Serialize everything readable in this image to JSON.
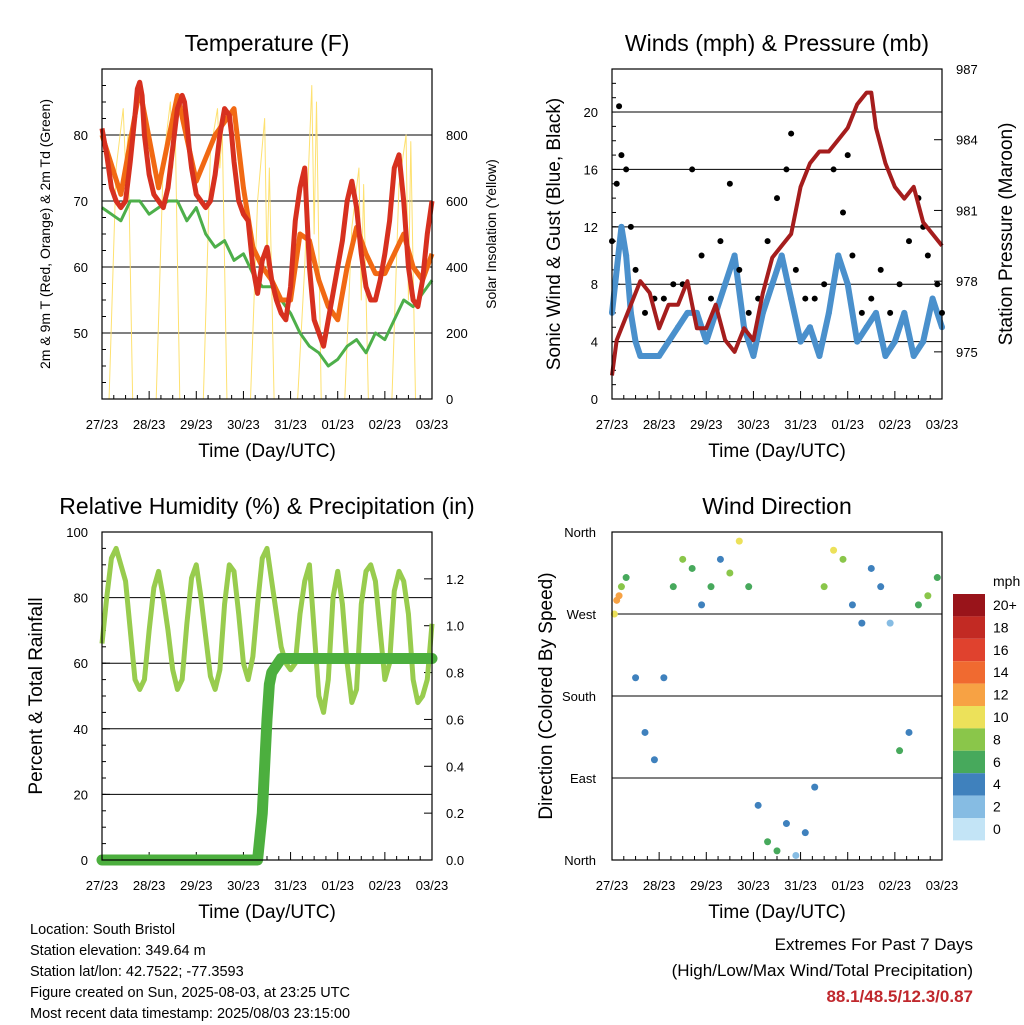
{
  "x_ticks": [
    "27/23",
    "28/23",
    "29/23",
    "30/23",
    "31/23",
    "01/23",
    "02/23",
    "03/23"
  ],
  "xlabel": "Time (Day/UTC)",
  "chart_data": [
    {
      "type": "line",
      "title": "Temperature (F)",
      "ylabel": "2m & 9m T (Red, Orange) & 2m Td (Green)",
      "y2label": "Solar Insolation (Yellow)",
      "ylim": [
        40,
        90
      ],
      "y_ticks": [
        50,
        60,
        70,
        80
      ],
      "y2lim": [
        0,
        1000
      ],
      "y2_ticks": [
        0,
        200,
        400,
        600,
        800
      ],
      "x_range_days": [
        0,
        7
      ],
      "series": [
        {
          "name": "2m T",
          "color": "#d7301f",
          "width": 5,
          "x": [
            0,
            0.1,
            0.2,
            0.3,
            0.4,
            0.5,
            0.6,
            0.7,
            0.75,
            0.8,
            0.85,
            0.9,
            1.0,
            1.1,
            1.2,
            1.3,
            1.4,
            1.5,
            1.6,
            1.7,
            1.75,
            1.8,
            1.85,
            1.9,
            2.0,
            2.1,
            2.2,
            2.3,
            2.4,
            2.5,
            2.6,
            2.7,
            2.75,
            2.8,
            2.85,
            2.9,
            3.0,
            3.1,
            3.2,
            3.3,
            3.4,
            3.5,
            3.6,
            3.7,
            3.8,
            3.9,
            4.0,
            4.1,
            4.2,
            4.3,
            4.4,
            4.5,
            4.6,
            4.7,
            4.8,
            4.9,
            5.0,
            5.1,
            5.2,
            5.3,
            5.4,
            5.5,
            5.6,
            5.7,
            5.8,
            5.9,
            6.0,
            6.1,
            6.2,
            6.3,
            6.4,
            6.5,
            6.6,
            6.7,
            6.8,
            6.9,
            7.0
          ],
          "y": [
            81,
            77,
            72,
            70,
            69,
            70,
            76,
            83,
            87,
            88,
            86,
            80,
            74,
            71,
            70,
            69,
            72,
            78,
            84,
            86,
            85,
            82,
            78,
            75,
            71,
            70,
            69,
            70,
            74,
            80,
            84,
            83,
            80,
            76,
            73,
            70,
            68,
            67,
            60,
            56,
            61,
            63,
            58,
            55,
            53,
            52,
            57,
            67,
            72,
            75,
            60,
            52,
            50,
            48,
            52,
            56,
            60,
            64,
            70,
            73,
            69,
            62,
            57,
            55,
            55,
            58,
            62,
            67,
            75,
            77,
            70,
            60,
            55,
            54,
            58,
            65,
            70
          ]
        },
        {
          "name": "9m T",
          "color": "#f16913",
          "width": 5,
          "x": [
            0,
            0.4,
            0.8,
            1.2,
            1.6,
            2.0,
            2.4,
            2.8,
            3.0,
            3.2,
            3.4,
            3.6,
            3.8,
            4.0,
            4.2,
            4.4,
            4.6,
            4.8,
            5.0,
            5.2,
            5.4,
            5.6,
            5.8,
            6.0,
            6.2,
            6.4,
            6.6,
            6.8,
            7.0
          ],
          "y": [
            80,
            71,
            87,
            72,
            86,
            73,
            80,
            84,
            72,
            63,
            60,
            58,
            55,
            55,
            65,
            64,
            58,
            54,
            52,
            60,
            66,
            62,
            59,
            59,
            62,
            65,
            60,
            58,
            62
          ]
        },
        {
          "name": "2m Td",
          "color": "#4daf4a",
          "width": 3,
          "x": [
            0,
            0.2,
            0.4,
            0.6,
            0.8,
            1.0,
            1.2,
            1.4,
            1.6,
            1.8,
            2.0,
            2.2,
            2.4,
            2.6,
            2.8,
            3.0,
            3.2,
            3.4,
            3.6,
            3.8,
            4.0,
            4.2,
            4.4,
            4.6,
            4.8,
            5.0,
            5.2,
            5.4,
            5.6,
            5.8,
            6.0,
            6.2,
            6.4,
            6.6,
            6.8,
            7.0
          ],
          "y": [
            69,
            68,
            67,
            70,
            70,
            68,
            69,
            70,
            70,
            67,
            69,
            65,
            63,
            64,
            61,
            62,
            59,
            57,
            57,
            55,
            53,
            50,
            48,
            47,
            45,
            46,
            48,
            49,
            47,
            50,
            49,
            52,
            55,
            54,
            56,
            58
          ]
        },
        {
          "name": "Solar",
          "color": "#fee170",
          "width": 1,
          "axis": "y2",
          "x": [
            0,
            0.15,
            0.3,
            0.45,
            0.5,
            0.55,
            0.65,
            0.85,
            1.15,
            1.3,
            1.45,
            1.5,
            1.55,
            1.65,
            1.85,
            2.15,
            2.3,
            2.45,
            2.5,
            2.55,
            2.65,
            2.85,
            3.15,
            3.3,
            3.45,
            3.5,
            3.55,
            3.65,
            3.85,
            4.15,
            4.3,
            4.45,
            4.5,
            4.55,
            4.65,
            4.85,
            5.15,
            5.3,
            5.45,
            5.5,
            5.55,
            5.65,
            5.85,
            6.15,
            6.3,
            6.45,
            6.5,
            6.55,
            6.65,
            6.85,
            7.0
          ],
          "y": [
            0,
            0,
            700,
            880,
            700,
            800,
            0,
            0,
            0,
            720,
            900,
            700,
            850,
            0,
            0,
            0,
            750,
            880,
            700,
            820,
            0,
            0,
            0,
            600,
            850,
            400,
            700,
            0,
            0,
            0,
            400,
            950,
            500,
            900,
            0,
            0,
            0,
            520,
            700,
            300,
            650,
            0,
            0,
            0,
            650,
            800,
            300,
            780,
            0,
            0,
            0
          ]
        }
      ]
    },
    {
      "type": "scatter",
      "title": "Winds (mph) & Pressure (mb)",
      "ylabel": "Sonic Wind & Gust (Blue, Black)",
      "y2label": "Station Pressure (Maroon)",
      "ylim": [
        0,
        23
      ],
      "y_ticks": [
        0,
        4,
        8,
        12,
        16,
        20
      ],
      "y2lim": [
        973,
        987
      ],
      "y2_ticks": [
        975,
        978,
        981,
        984,
        987
      ],
      "x_range_days": [
        0,
        7
      ],
      "series": [
        {
          "name": "Wind",
          "color": "#4a90cc",
          "x": [
            0,
            0.1,
            0.2,
            0.3,
            0.4,
            0.5,
            0.6,
            0.8,
            1.0,
            1.2,
            1.4,
            1.6,
            1.8,
            2.0,
            2.2,
            2.4,
            2.6,
            2.8,
            3.0,
            3.2,
            3.4,
            3.6,
            3.8,
            4.0,
            4.2,
            4.4,
            4.6,
            4.8,
            5.0,
            5.2,
            5.4,
            5.6,
            5.8,
            6.0,
            6.2,
            6.4,
            6.6,
            6.8,
            7.0
          ],
          "y": [
            6,
            9,
            12,
            10,
            6,
            4,
            3,
            3,
            3,
            4,
            5,
            6,
            6,
            4,
            6,
            8,
            10,
            5,
            3,
            6,
            8,
            10,
            7,
            4,
            5,
            3,
            6,
            10,
            8,
            4,
            5,
            6,
            3,
            4,
            6,
            3,
            4,
            7,
            5
          ]
        },
        {
          "name": "Gust",
          "color": "#000000",
          "x": [
            0,
            0.1,
            0.15,
            0.2,
            0.3,
            0.4,
            0.5,
            0.7,
            0.9,
            1.1,
            1.3,
            1.5,
            1.7,
            1.9,
            2.1,
            2.3,
            2.5,
            2.7,
            2.9,
            3.1,
            3.3,
            3.5,
            3.7,
            3.8,
            3.9,
            4.1,
            4.3,
            4.5,
            4.7,
            4.9,
            5.0,
            5.1,
            5.3,
            5.5,
            5.7,
            5.9,
            6.1,
            6.3,
            6.5,
            6.6,
            6.7,
            6.9,
            7.0
          ],
          "y": [
            11,
            15,
            20.4,
            17,
            16,
            12,
            9,
            6,
            7,
            7,
            8,
            8,
            16,
            10,
            7,
            11,
            15,
            9,
            6,
            7,
            11,
            14,
            16,
            18.5,
            9,
            7,
            7,
            8,
            16,
            13,
            17,
            10,
            6,
            7,
            9,
            6,
            8,
            11,
            14,
            12,
            10,
            8,
            6
          ]
        },
        {
          "name": "Pressure",
          "color": "#a51d1d",
          "axis": "y2",
          "x": [
            0,
            0.1,
            0.2,
            0.4,
            0.6,
            0.8,
            1.0,
            1.2,
            1.4,
            1.6,
            1.8,
            2.0,
            2.2,
            2.4,
            2.6,
            2.8,
            3.0,
            3.2,
            3.4,
            3.6,
            3.8,
            4.0,
            4.2,
            4.4,
            4.6,
            4.8,
            5.0,
            5.2,
            5.4,
            5.5,
            5.6,
            5.8,
            6.0,
            6.2,
            6.4,
            6.6,
            6.8,
            7.0
          ],
          "y": [
            974,
            975.5,
            976,
            977,
            978,
            977.5,
            976,
            977,
            977,
            978,
            976,
            976,
            977,
            975.5,
            975,
            976,
            975.5,
            977.5,
            979,
            979.5,
            980,
            982,
            983,
            983.5,
            983.5,
            984,
            984.5,
            985.5,
            986,
            986,
            984.5,
            983,
            982,
            981.5,
            982,
            980.5,
            980,
            979.5
          ]
        }
      ]
    },
    {
      "type": "line",
      "title": "Relative Humidity (%) & Precipitation (in)",
      "ylabel": "Percent & Total Rainfall",
      "ylim": [
        0,
        100
      ],
      "y_ticks": [
        0,
        20,
        40,
        60,
        80,
        100
      ],
      "y2lim": [
        0,
        1.4
      ],
      "y2_ticks": [
        0.0,
        0.2,
        0.4,
        0.6,
        0.8,
        1.0,
        1.2
      ],
      "x_range_days": [
        0,
        7
      ],
      "series": [
        {
          "name": "RH",
          "color": "#98cc4e",
          "width": 5,
          "x": [
            0,
            0.1,
            0.2,
            0.3,
            0.4,
            0.5,
            0.6,
            0.7,
            0.8,
            0.9,
            1.0,
            1.1,
            1.2,
            1.3,
            1.4,
            1.5,
            1.6,
            1.7,
            1.8,
            1.9,
            2.0,
            2.1,
            2.2,
            2.3,
            2.4,
            2.5,
            2.6,
            2.7,
            2.8,
            2.9,
            3.0,
            3.1,
            3.2,
            3.3,
            3.4,
            3.5,
            3.6,
            3.7,
            3.8,
            3.9,
            4.0,
            4.1,
            4.2,
            4.3,
            4.4,
            4.5,
            4.6,
            4.7,
            4.8,
            4.9,
            5.0,
            5.1,
            5.2,
            5.3,
            5.4,
            5.5,
            5.6,
            5.7,
            5.8,
            5.9,
            6.0,
            6.1,
            6.2,
            6.3,
            6.4,
            6.5,
            6.6,
            6.7,
            6.8,
            6.9,
            7.0
          ],
          "y": [
            66,
            80,
            92,
            95,
            90,
            85,
            70,
            55,
            52,
            55,
            70,
            83,
            88,
            80,
            70,
            58,
            52,
            55,
            72,
            86,
            90,
            80,
            68,
            56,
            52,
            58,
            78,
            90,
            88,
            75,
            60,
            55,
            62,
            78,
            92,
            95,
            85,
            75,
            65,
            60,
            58,
            60,
            75,
            85,
            90,
            70,
            50,
            45,
            55,
            80,
            88,
            78,
            60,
            48,
            52,
            78,
            88,
            90,
            85,
            70,
            55,
            60,
            82,
            88,
            85,
            75,
            55,
            48,
            50,
            55,
            72
          ]
        },
        {
          "name": "Precip",
          "color": "#4caf3e",
          "width": 11,
          "axis": "y2",
          "x": [
            0,
            1.0,
            2.0,
            3.0,
            3.3,
            3.4,
            3.45,
            3.5,
            3.55,
            3.6,
            3.7,
            3.8,
            4.0,
            5.0,
            6.0,
            7.0
          ],
          "y": [
            0,
            0,
            0,
            0,
            0,
            0.2,
            0.4,
            0.6,
            0.75,
            0.8,
            0.83,
            0.86,
            0.86,
            0.86,
            0.86,
            0.86
          ]
        }
      ]
    },
    {
      "type": "scatter",
      "title": "Wind Direction",
      "ylabel": "Direction (Colored By Speed)",
      "y_ticks": [
        "North",
        "West",
        "South",
        "East",
        "North"
      ],
      "ylim": [
        0,
        360
      ],
      "x_range_days": [
        0,
        7
      ],
      "legend_title": "mph",
      "legend_labels": [
        "20+",
        "18",
        "16",
        "14",
        "12",
        "10",
        "8",
        "6",
        "4",
        "2",
        "0"
      ],
      "legend_colors": [
        "#99141a",
        "#c22a23",
        "#e0422e",
        "#f06a30",
        "#f7a244",
        "#ece15a",
        "#8ac64a",
        "#47a95c",
        "#3f81bd",
        "#86bce3",
        "#c3e4f6"
      ],
      "series": [
        {
          "name": "dir",
          "x": [
            0.05,
            0.1,
            0.15,
            0.2,
            0.3,
            0.5,
            0.7,
            0.9,
            1.1,
            1.3,
            1.5,
            1.7,
            1.9,
            2.1,
            2.3,
            2.5,
            2.7,
            2.9,
            3.1,
            3.3,
            3.5,
            3.7,
            3.9,
            4.1,
            4.3,
            4.5,
            4.7,
            4.9,
            5.1,
            5.3,
            5.5,
            5.7,
            5.9,
            6.1,
            6.3,
            6.5,
            6.7,
            6.9
          ],
          "y": [
            270,
            285,
            290,
            300,
            310,
            200,
            140,
            110,
            200,
            300,
            330,
            320,
            280,
            300,
            330,
            315,
            350,
            300,
            60,
            20,
            10,
            40,
            5,
            30,
            80,
            300,
            340,
            330,
            280,
            260,
            320,
            300,
            260,
            120,
            140,
            280,
            290,
            310
          ],
          "s": [
            10,
            12,
            12,
            8,
            5,
            4,
            3,
            3,
            4,
            5,
            8,
            5,
            4,
            6,
            4,
            8,
            10,
            6,
            3,
            5,
            6,
            4,
            2,
            4,
            3,
            8,
            10,
            8,
            4,
            3,
            4,
            3,
            2,
            5,
            4,
            6,
            7,
            5
          ]
        }
      ]
    }
  ],
  "meta": {
    "location": "Location: South Bristol",
    "elevation": "Station elevation: 349.64 m",
    "latlon": "Station lat/lon: 42.7522; -77.3593",
    "created": "Figure created on Sun, 2025-08-03, at 23:25 UTC",
    "recent": "Most recent data timestamp: 2025/08/03 23:15:00"
  },
  "extremes": {
    "title": "Extremes For Past 7 Days",
    "subtitle": "(High/Low/Max Wind/Total Precipitation)",
    "values": "88.1/48.5/12.3/0.87"
  }
}
